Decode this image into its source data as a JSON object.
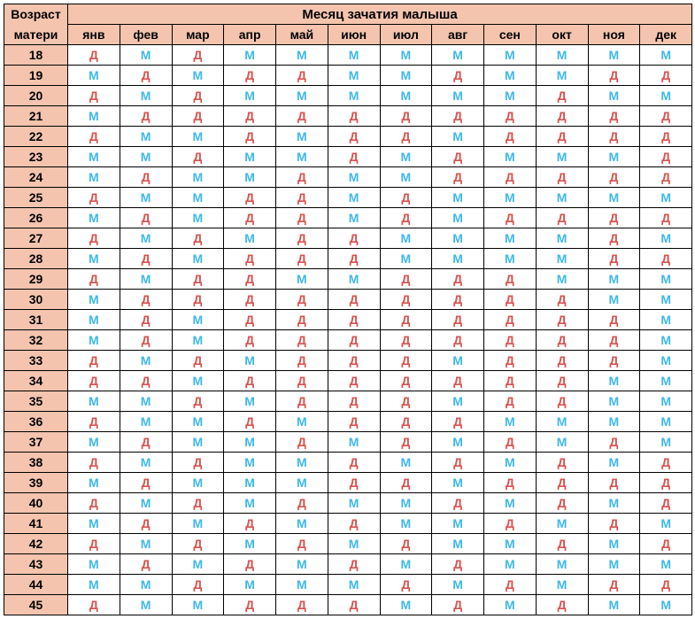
{
  "header": {
    "corner_top": "Возраст",
    "corner_bottom": "матери",
    "top": "Месяц зачатия малыша",
    "months": [
      "янв",
      "фев",
      "мар",
      "апр",
      "май",
      "июн",
      "июл",
      "авг",
      "сен",
      "окт",
      "ноя",
      "дек"
    ]
  },
  "ages": [
    "18",
    "19",
    "20",
    "21",
    "22",
    "23",
    "24",
    "25",
    "26",
    "27",
    "28",
    "29",
    "30",
    "31",
    "32",
    "33",
    "34",
    "35",
    "36",
    "37",
    "38",
    "39",
    "40",
    "41",
    "42",
    "43",
    "44",
    "45"
  ],
  "rows": [
    [
      "Д",
      "М",
      "Д",
      "М",
      "М",
      "М",
      "М",
      "М",
      "М",
      "М",
      "М",
      "М"
    ],
    [
      "М",
      "Д",
      "М",
      "Д",
      "Д",
      "М",
      "М",
      "Д",
      "М",
      "М",
      "Д",
      "Д"
    ],
    [
      "Д",
      "М",
      "Д",
      "М",
      "М",
      "М",
      "М",
      "М",
      "М",
      "Д",
      "М",
      "М"
    ],
    [
      "М",
      "Д",
      "Д",
      "Д",
      "Д",
      "Д",
      "Д",
      "Д",
      "Д",
      "Д",
      "Д",
      "Д"
    ],
    [
      "Д",
      "М",
      "М",
      "Д",
      "М",
      "Д",
      "Д",
      "М",
      "Д",
      "Д",
      "Д",
      "Д"
    ],
    [
      "М",
      "М",
      "Д",
      "М",
      "М",
      "Д",
      "М",
      "Д",
      "М",
      "М",
      "М",
      "Д"
    ],
    [
      "М",
      "Д",
      "М",
      "М",
      "Д",
      "М",
      "М",
      "Д",
      "Д",
      "Д",
      "Д",
      "Д"
    ],
    [
      "Д",
      "М",
      "М",
      "Д",
      "Д",
      "М",
      "Д",
      "М",
      "М",
      "М",
      "М",
      "М"
    ],
    [
      "М",
      "Д",
      "М",
      "Д",
      "Д",
      "М",
      "Д",
      "М",
      "Д",
      "Д",
      "Д",
      "Д"
    ],
    [
      "Д",
      "М",
      "Д",
      "М",
      "Д",
      "Д",
      "М",
      "М",
      "М",
      "М",
      "Д",
      "М"
    ],
    [
      "М",
      "Д",
      "М",
      "Д",
      "Д",
      "Д",
      "М",
      "М",
      "М",
      "М",
      "Д",
      "Д"
    ],
    [
      "Д",
      "М",
      "Д",
      "Д",
      "М",
      "М",
      "Д",
      "Д",
      "Д",
      "М",
      "М",
      "М"
    ],
    [
      "М",
      "Д",
      "Д",
      "Д",
      "Д",
      "Д",
      "Д",
      "Д",
      "Д",
      "Д",
      "М",
      "М"
    ],
    [
      "М",
      "Д",
      "М",
      "Д",
      "Д",
      "Д",
      "Д",
      "Д",
      "Д",
      "Д",
      "Д",
      "М"
    ],
    [
      "М",
      "Д",
      "М",
      "Д",
      "Д",
      "Д",
      "Д",
      "Д",
      "Д",
      "Д",
      "Д",
      "М"
    ],
    [
      "Д",
      "М",
      "Д",
      "М",
      "Д",
      "Д",
      "Д",
      "М",
      "Д",
      "Д",
      "Д",
      "М"
    ],
    [
      "Д",
      "Д",
      "М",
      "Д",
      "Д",
      "Д",
      "Д",
      "Д",
      "Д",
      "Д",
      "М",
      "М"
    ],
    [
      "М",
      "М",
      "Д",
      "М",
      "Д",
      "Д",
      "Д",
      "М",
      "Д",
      "Д",
      "М",
      "М"
    ],
    [
      "Д",
      "М",
      "М",
      "Д",
      "М",
      "Д",
      "Д",
      "Д",
      "М",
      "М",
      "М",
      "М"
    ],
    [
      "М",
      "Д",
      "М",
      "М",
      "Д",
      "М",
      "Д",
      "М",
      "Д",
      "М",
      "Д",
      "М"
    ],
    [
      "Д",
      "М",
      "Д",
      "М",
      "М",
      "Д",
      "М",
      "Д",
      "М",
      "Д",
      "М",
      "Д"
    ],
    [
      "М",
      "Д",
      "М",
      "М",
      "М",
      "Д",
      "Д",
      "М",
      "Д",
      "Д",
      "Д",
      "Д"
    ],
    [
      "Д",
      "М",
      "Д",
      "М",
      "Д",
      "М",
      "М",
      "Д",
      "М",
      "Д",
      "М",
      "Д"
    ],
    [
      "М",
      "Д",
      "М",
      "Д",
      "М",
      "Д",
      "М",
      "М",
      "Д",
      "М",
      "Д",
      "М"
    ],
    [
      "Д",
      "М",
      "Д",
      "М",
      "Д",
      "М",
      "Д",
      "М",
      "М",
      "Д",
      "М",
      "Д"
    ],
    [
      "М",
      "Д",
      "М",
      "Д",
      "М",
      "Д",
      "М",
      "Д",
      "М",
      "М",
      "М",
      "М"
    ],
    [
      "М",
      "М",
      "Д",
      "М",
      "М",
      "М",
      "Д",
      "М",
      "Д",
      "М",
      "Д",
      "Д"
    ],
    [
      "Д",
      "М",
      "М",
      "Д",
      "Д",
      "Д",
      "М",
      "Д",
      "М",
      "Д",
      "М",
      "М"
    ]
  ],
  "style": {
    "colors": {
      "header_bg": "#f4c4ae",
      "border": "#000000",
      "M": "#3fb8e8",
      "D": "#d9534f",
      "cell_bg": "#ffffff"
    },
    "symbols": {
      "M": "М",
      "D": "Д"
    },
    "font_family": "Arial",
    "cell_fontsize": 14,
    "header_fontsize": 14,
    "top_header_fontsize": 15
  }
}
